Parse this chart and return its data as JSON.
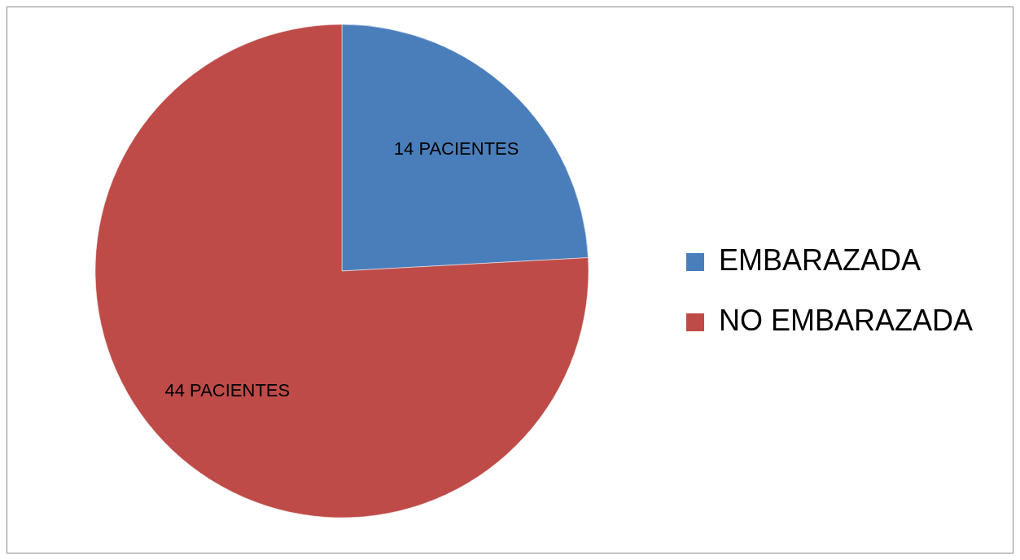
{
  "chart_data": {
    "type": "pie",
    "categories": [
      "EMBARAZADA",
      "NO EMBARAZADA"
    ],
    "values": [
      14,
      44
    ],
    "colors": [
      "#4a7ebb",
      "#be4b48"
    ],
    "value_labels": [
      "14 PACIENTES",
      "44 PACIENTES"
    ],
    "legend": "right"
  }
}
